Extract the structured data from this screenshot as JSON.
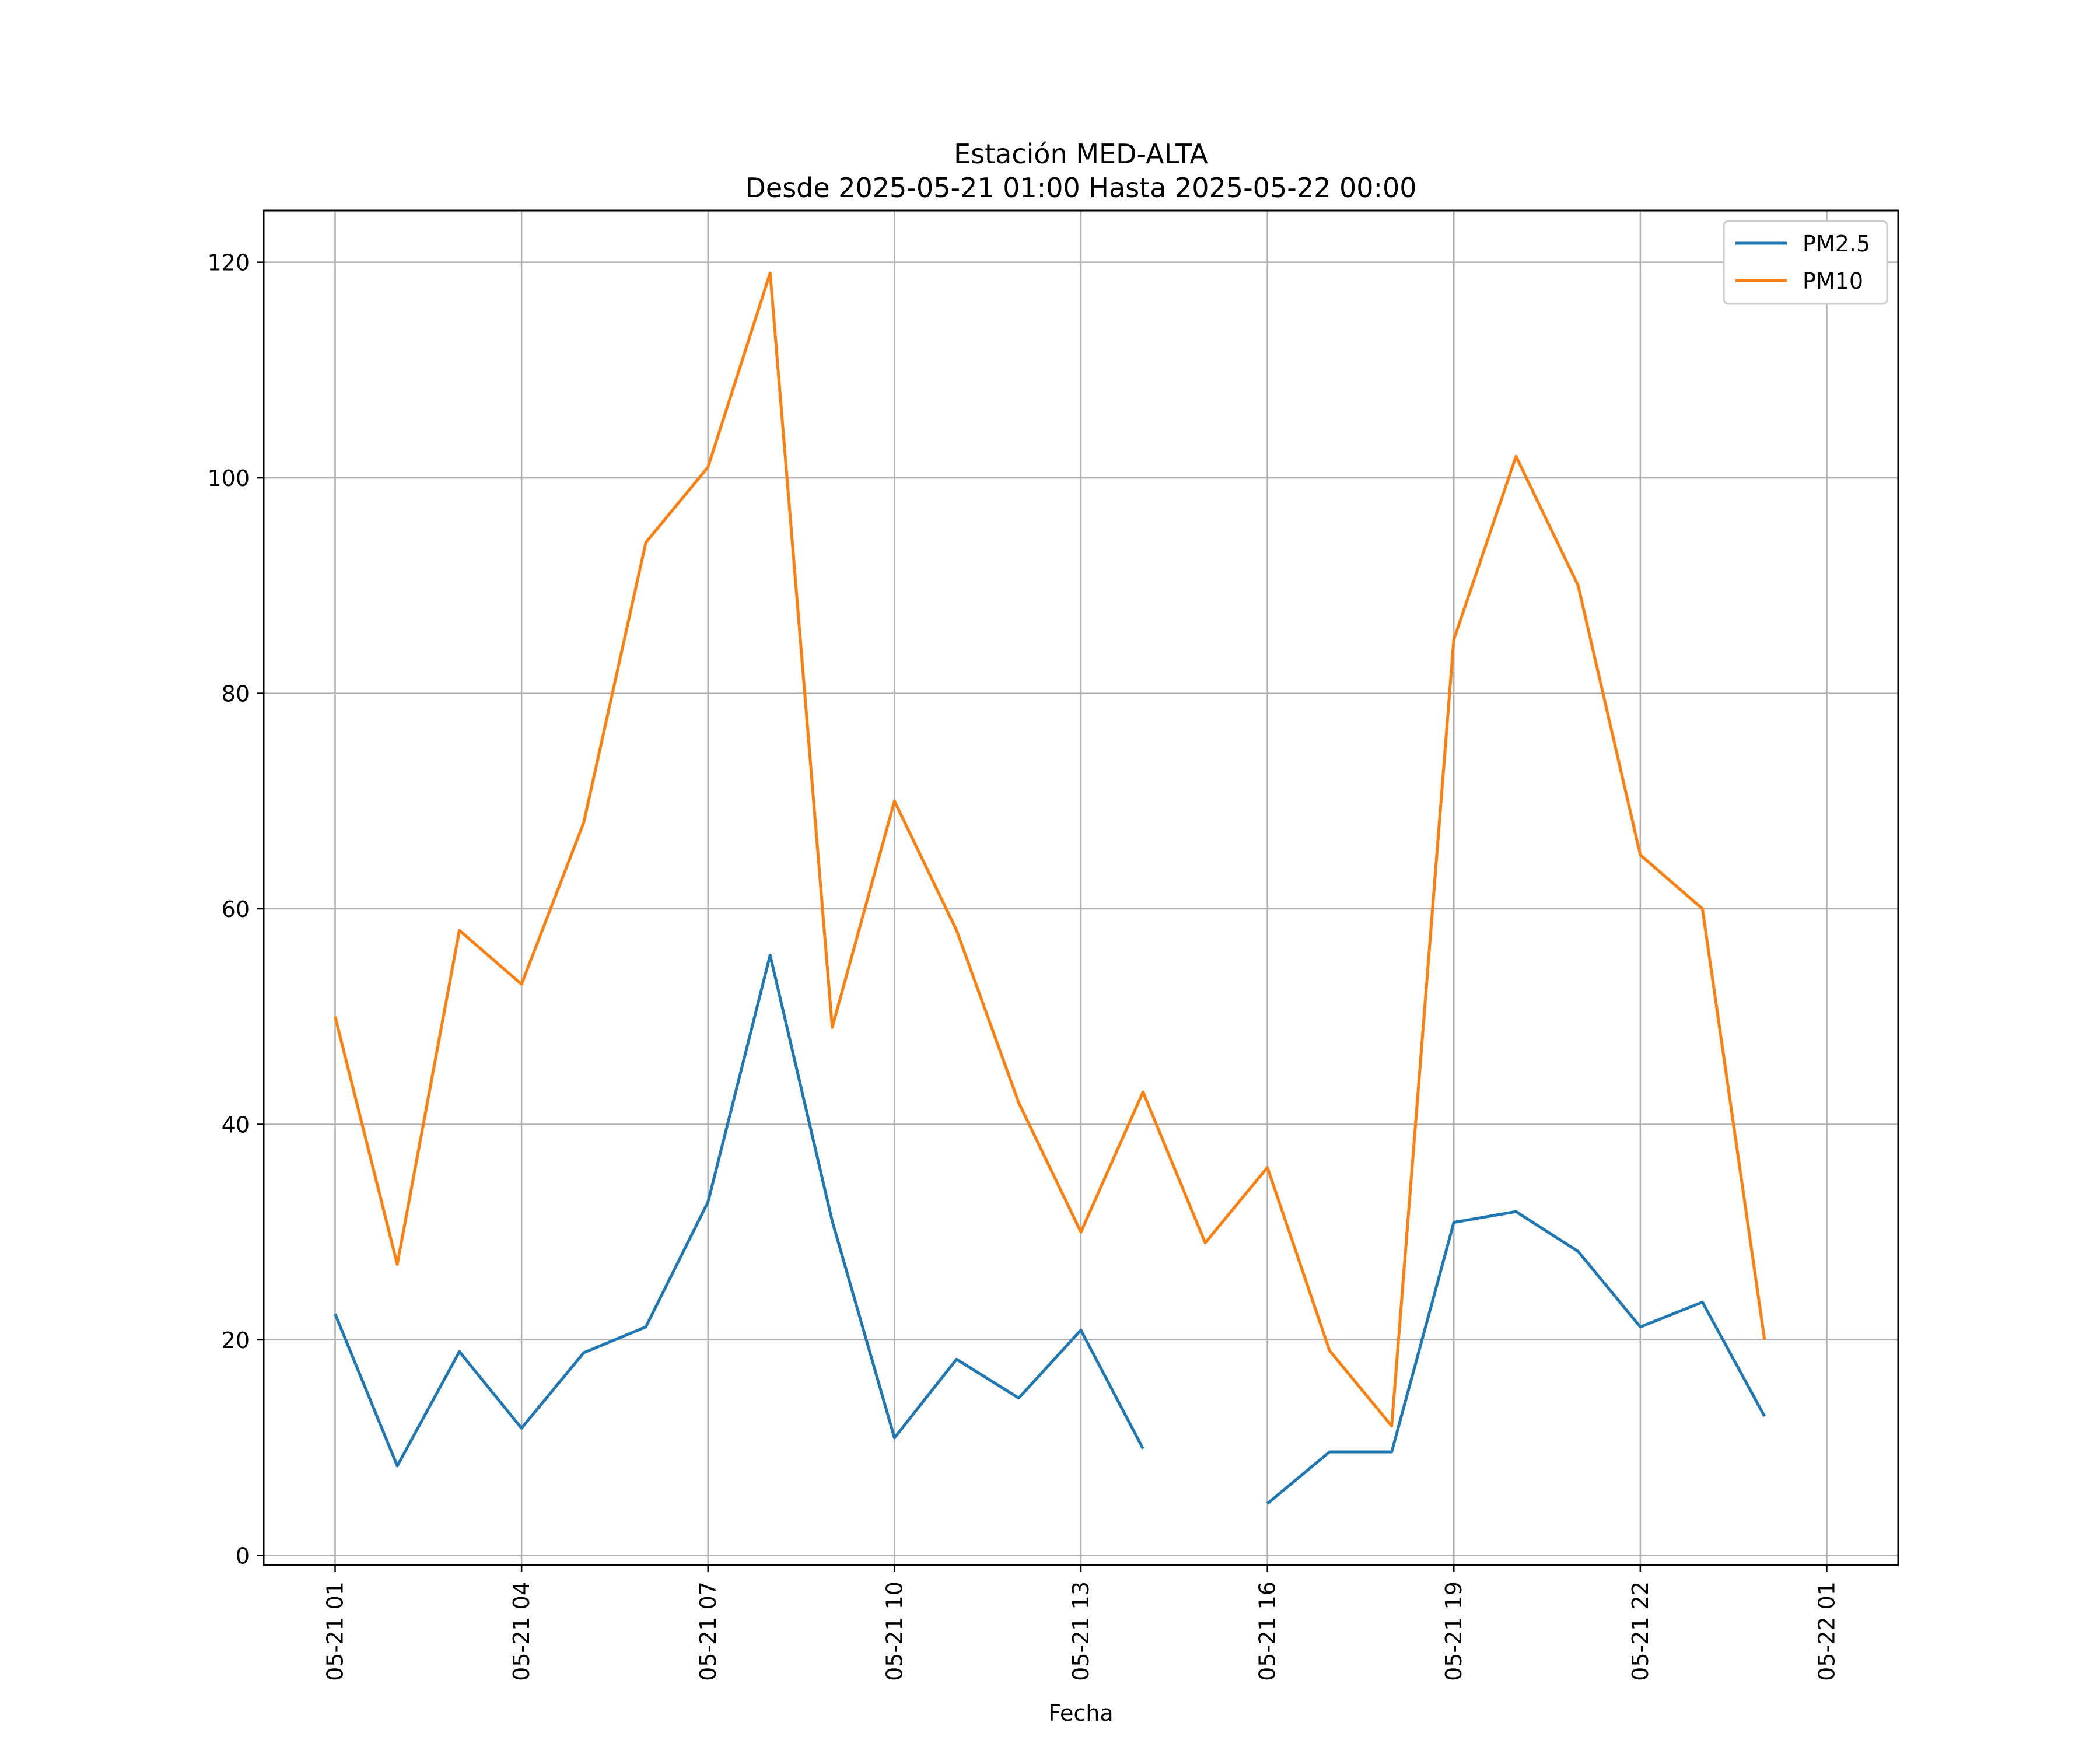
{
  "chart_data": {
    "type": "line",
    "title": "Estación MED-ALTA",
    "subtitle": "Desde 2025-05-21 01:00 Hasta 2025-05-22 00:00",
    "xlabel": "Fecha",
    "ylabel": "",
    "ylim": [
      -0.9,
      124.8
    ],
    "yticks": [
      0,
      20,
      40,
      60,
      80,
      100,
      120
    ],
    "xlim_hours": [
      -1.15,
      25.15
    ],
    "x": [
      "2025-05-21 01:00",
      "2025-05-21 02:00",
      "2025-05-21 03:00",
      "2025-05-21 04:00",
      "2025-05-21 05:00",
      "2025-05-21 06:00",
      "2025-05-21 07:00",
      "2025-05-21 08:00",
      "2025-05-21 09:00",
      "2025-05-21 10:00",
      "2025-05-21 11:00",
      "2025-05-21 12:00",
      "2025-05-21 13:00",
      "2025-05-21 14:00",
      "2025-05-21 15:00",
      "2025-05-21 16:00",
      "2025-05-21 17:00",
      "2025-05-21 18:00",
      "2025-05-21 19:00",
      "2025-05-21 20:00",
      "2025-05-21 21:00",
      "2025-05-21 22:00",
      "2025-05-21 23:00",
      "2025-05-22 00:00"
    ],
    "xticks": [
      {
        "label": "05-21 01",
        "date": "2025-05-21 01:00"
      },
      {
        "label": "05-21 04",
        "date": "2025-05-21 04:00"
      },
      {
        "label": "05-21 07",
        "date": "2025-05-21 07:00"
      },
      {
        "label": "05-21 10",
        "date": "2025-05-21 10:00"
      },
      {
        "label": "05-21 13",
        "date": "2025-05-21 13:00"
      },
      {
        "label": "05-21 16",
        "date": "2025-05-21 16:00"
      },
      {
        "label": "05-21 19",
        "date": "2025-05-21 19:00"
      },
      {
        "label": "05-21 22",
        "date": "2025-05-21 22:00"
      },
      {
        "label": "05-22 01",
        "date": "2025-05-22 01:00"
      }
    ],
    "series": [
      {
        "name": "PM2.5",
        "color": "#1f77b4",
        "values": [
          22.4,
          8.3,
          18.9,
          11.8,
          18.8,
          21.2,
          32.8,
          55.7,
          31.0,
          10.9,
          18.2,
          14.6,
          20.9,
          9.9,
          null,
          4.8,
          9.6,
          9.6,
          30.9,
          31.9,
          28.2,
          21.2,
          23.5,
          12.9
        ]
      },
      {
        "name": "PM10",
        "color": "#ff7f0e",
        "values": [
          50,
          27,
          58,
          53,
          68,
          94,
          101,
          119,
          49,
          70,
          58,
          42,
          30,
          43,
          29,
          36,
          19,
          12,
          85,
          102,
          90,
          65,
          60,
          20
        ]
      }
    ],
    "grid": true,
    "legend_position": "top-right"
  }
}
